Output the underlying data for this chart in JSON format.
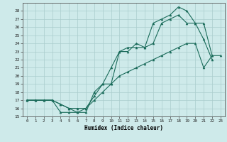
{
  "xlabel": "Humidex (Indice chaleur)",
  "background_color": "#ceeaea",
  "grid_color": "#aacccc",
  "line_color": "#1a6b5a",
  "xlim": [
    -0.5,
    23.5
  ],
  "ylim": [
    15,
    29
  ],
  "xticks": [
    0,
    1,
    2,
    3,
    4,
    5,
    6,
    7,
    8,
    9,
    10,
    11,
    12,
    13,
    14,
    15,
    16,
    17,
    18,
    19,
    20,
    21,
    22,
    23
  ],
  "yticks": [
    15,
    16,
    17,
    18,
    19,
    20,
    21,
    22,
    23,
    24,
    25,
    26,
    27,
    28
  ],
  "line1_x": [
    0,
    1,
    2,
    3,
    4,
    5,
    6,
    7,
    8,
    9,
    10,
    11,
    12,
    13,
    14,
    15,
    16,
    17,
    18,
    19,
    20,
    21,
    22
  ],
  "line1_y": [
    17,
    17,
    17,
    17,
    15.5,
    15.5,
    15.5,
    16,
    17.5,
    19,
    21,
    23,
    23.5,
    23.5,
    23.5,
    26.5,
    27,
    27.5,
    28.5,
    28,
    26.5,
    26.5,
    22.5
  ],
  "line2_x": [
    0,
    1,
    2,
    3,
    4,
    5,
    6,
    7,
    8,
    9,
    10,
    11,
    12,
    13,
    14,
    15,
    16,
    17,
    18,
    19,
    20,
    21,
    22
  ],
  "line2_y": [
    17,
    17,
    17,
    17,
    16.5,
    16,
    15.5,
    15.5,
    18,
    19,
    19,
    23,
    23,
    24,
    23.5,
    24,
    26.5,
    27,
    27.5,
    26.5,
    26.5,
    24.5,
    22
  ],
  "line3_x": [
    0,
    1,
    2,
    3,
    4,
    5,
    6,
    7,
    8,
    9,
    10,
    11,
    12,
    13,
    14,
    15,
    16,
    17,
    18,
    19,
    20,
    21,
    22,
    23
  ],
  "line3_y": [
    17,
    17,
    17,
    17,
    16.5,
    16,
    16,
    16,
    17,
    18,
    19,
    20,
    20.5,
    21,
    21.5,
    22,
    22.5,
    23,
    23.5,
    24,
    24,
    21,
    22.5,
    22.5
  ]
}
